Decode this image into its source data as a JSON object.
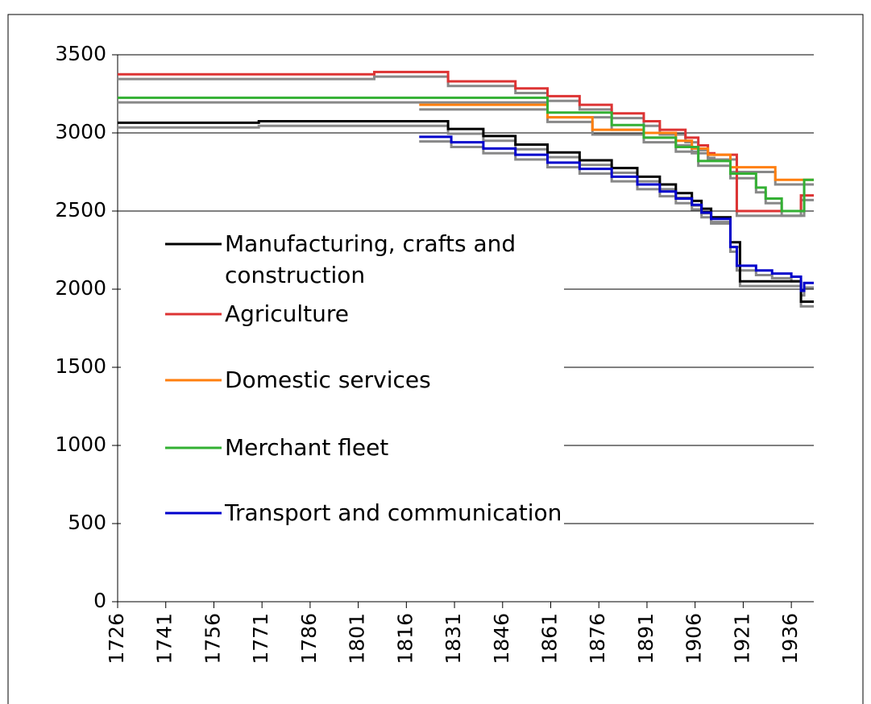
{
  "chart_data": {
    "type": "line",
    "step": true,
    "grid": true,
    "legend": "left",
    "xlim": [
      1726,
      1943
    ],
    "ylim": [
      0,
      3500
    ],
    "xticks": [
      1726,
      1741,
      1756,
      1771,
      1786,
      1801,
      1816,
      1831,
      1846,
      1861,
      1876,
      1891,
      1906,
      1921,
      1936
    ],
    "yticks": [
      0,
      500,
      1000,
      1500,
      2000,
      2500,
      3000,
      3500
    ],
    "series": [
      {
        "color": "#888888",
        "x": [
          1726,
          1770,
          1829,
          1840,
          1850,
          1860,
          1870,
          1880,
          1888,
          1895,
          1900,
          1905,
          1908,
          1911,
          1917,
          1920,
          1939,
          1943
        ],
        "values": [
          3035,
          3045,
          2995,
          2950,
          2895,
          2845,
          2795,
          2745,
          2690,
          2640,
          2585,
          2535,
          2485,
          2430,
          2270,
          2020,
          1890,
          1890
        ]
      },
      {
        "color": "#888888",
        "x": [
          1726,
          1806,
          1829,
          1850,
          1860,
          1870,
          1880,
          1890,
          1895,
          1903,
          1907,
          1910,
          1912,
          1919,
          1939,
          1943
        ],
        "values": [
          3345,
          3360,
          3300,
          3255,
          3205,
          3150,
          3095,
          3045,
          2990,
          2940,
          2890,
          2840,
          2830,
          2470,
          2570,
          2570
        ]
      },
      {
        "color": "#888888",
        "x": [
          1820,
          1860,
          1874,
          1890,
          1900,
          1905,
          1910,
          1917,
          1931,
          1943
        ],
        "values": [
          3150,
          3070,
          2990,
          2970,
          2920,
          2870,
          2830,
          2750,
          2670,
          2670
        ]
      },
      {
        "color": "#888888",
        "x": [
          1726,
          1860,
          1880,
          1890,
          1900,
          1907,
          1917,
          1925,
          1928,
          1933,
          1940,
          1943
        ],
        "values": [
          3195,
          3100,
          3020,
          2940,
          2880,
          2790,
          2710,
          2620,
          2550,
          2470,
          2670,
          2670
        ]
      },
      {
        "color": "#888888",
        "x": [
          1820,
          1830,
          1840,
          1850,
          1860,
          1870,
          1880,
          1888,
          1895,
          1900,
          1905,
          1908,
          1911,
          1917,
          1919,
          1925,
          1930,
          1936,
          1939,
          1940,
          1943
        ],
        "values": [
          2945,
          2910,
          2870,
          2830,
          2780,
          2740,
          2690,
          2640,
          2595,
          2550,
          2510,
          2460,
          2420,
          2240,
          2120,
          2090,
          2070,
          2050,
          1960,
          2010,
          2010
        ]
      },
      {
        "name": "Manufacturing, crafts and construction",
        "color": "#000000",
        "x": [
          1726,
          1770,
          1829,
          1840,
          1850,
          1860,
          1870,
          1880,
          1888,
          1895,
          1900,
          1905,
          1908,
          1911,
          1917,
          1920,
          1939,
          1943
        ],
        "values": [
          3065,
          3075,
          3025,
          2980,
          2925,
          2875,
          2825,
          2775,
          2720,
          2670,
          2615,
          2565,
          2515,
          2460,
          2300,
          2050,
          1920,
          1920
        ]
      },
      {
        "name": "Agriculture",
        "color": "#dd3333",
        "x": [
          1726,
          1806,
          1829,
          1850,
          1860,
          1870,
          1880,
          1890,
          1895,
          1903,
          1907,
          1910,
          1912,
          1919,
          1939,
          1943
        ],
        "values": [
          3375,
          3390,
          3330,
          3285,
          3235,
          3180,
          3125,
          3075,
          3020,
          2970,
          2920,
          2870,
          2860,
          2500,
          2600,
          2600
        ]
      },
      {
        "name": "Domestic services",
        "color": "#ff7f0e",
        "x": [
          1820,
          1860,
          1874,
          1890,
          1900,
          1905,
          1910,
          1917,
          1931,
          1943
        ],
        "values": [
          3180,
          3100,
          3020,
          3000,
          2950,
          2900,
          2860,
          2780,
          2700,
          2700
        ]
      },
      {
        "name": "Merchant fleet",
        "color": "#33b033",
        "x": [
          1726,
          1860,
          1880,
          1890,
          1900,
          1907,
          1917,
          1925,
          1928,
          1933,
          1940,
          1943
        ],
        "values": [
          3225,
          3130,
          3050,
          2970,
          2910,
          2820,
          2740,
          2650,
          2580,
          2500,
          2700,
          2700
        ]
      },
      {
        "name": "Transport and communication",
        "color": "#0000cc",
        "x": [
          1820,
          1830,
          1840,
          1850,
          1860,
          1870,
          1880,
          1888,
          1895,
          1900,
          1905,
          1908,
          1911,
          1917,
          1919,
          1925,
          1930,
          1936,
          1939,
          1940,
          1943
        ],
        "values": [
          2975,
          2940,
          2900,
          2860,
          2810,
          2770,
          2720,
          2670,
          2625,
          2580,
          2540,
          2490,
          2450,
          2270,
          2150,
          2120,
          2100,
          2080,
          1990,
          2040,
          2040
        ]
      }
    ]
  }
}
